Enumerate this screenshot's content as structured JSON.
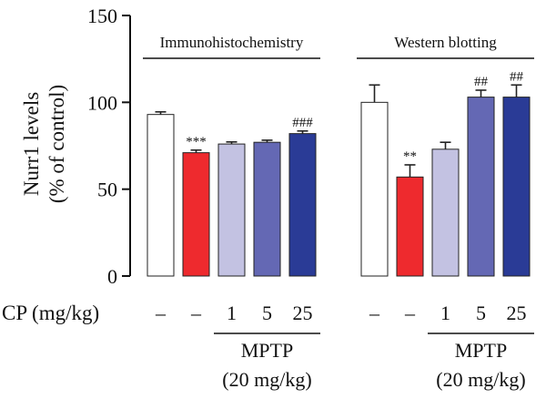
{
  "chart_data": {
    "type": "bar",
    "ylabel_line1": "Nurr1 levels",
    "ylabel_line2": "(% of control)",
    "ylim": [
      0,
      150
    ],
    "yticks": [
      0,
      50,
      100,
      150
    ],
    "grid": false,
    "colors": [
      "#ffffff",
      "#ee2a2e",
      "#c3c2e2",
      "#6468b4",
      "#2a3b96"
    ],
    "edge_color": "#222222",
    "groups": [
      {
        "title": "Immunohistochemistry",
        "values": [
          93,
          71,
          76,
          77,
          82
        ],
        "errors": [
          1.5,
          1.5,
          1.2,
          1.2,
          1.5
        ],
        "significance": [
          "",
          "***",
          "",
          "",
          "###"
        ]
      },
      {
        "title": "Western blotting",
        "values": [
          100,
          57,
          73,
          103,
          103
        ],
        "errors": [
          10,
          7,
          4,
          4,
          7
        ],
        "significance": [
          "",
          "**",
          "",
          "##",
          "##"
        ]
      }
    ],
    "cp_row_label": "CP (mg/kg)",
    "cp_doses": [
      "–",
      "–",
      "1",
      "5",
      "25"
    ],
    "mptp_label": "MPTP",
    "mptp_dose_label": "(20 mg/kg)"
  }
}
